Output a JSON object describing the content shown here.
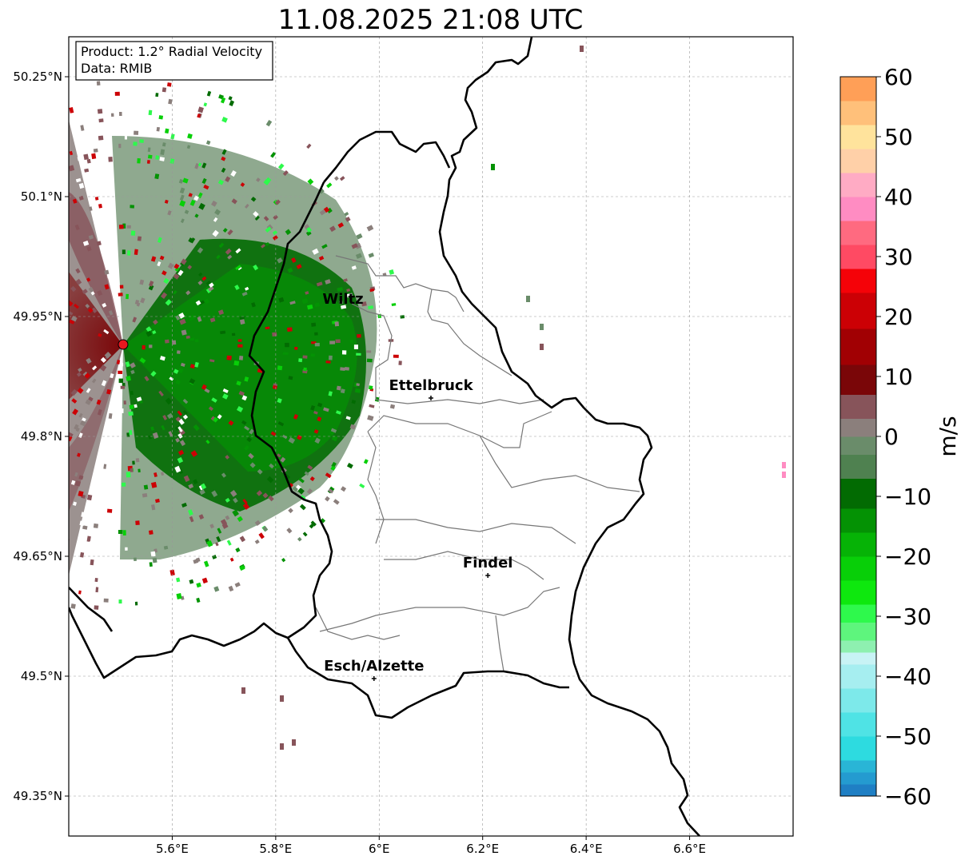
{
  "title": "11.08.2025 21:08 UTC",
  "info_box": {
    "product": "Product: 1.2° Radial Velocity",
    "data": "Data: RMIB"
  },
  "map": {
    "lon_range": [
      5.4,
      6.8
    ],
    "lat_range": [
      49.3,
      50.3
    ],
    "x_ticks": [
      {
        "value": 5.6,
        "label": "5.6°E"
      },
      {
        "value": 5.8,
        "label": "5.8°E"
      },
      {
        "value": 6.0,
        "label": "6°E"
      },
      {
        "value": 6.2,
        "label": "6.2°E"
      },
      {
        "value": 6.4,
        "label": "6.4°E"
      },
      {
        "value": 6.6,
        "label": "6.6°E"
      }
    ],
    "y_ticks": [
      {
        "value": 49.35,
        "label": "49.35°N"
      },
      {
        "value": 49.5,
        "label": "49.5°N"
      },
      {
        "value": 49.65,
        "label": "49.65°N"
      },
      {
        "value": 49.8,
        "label": "49.8°N"
      },
      {
        "value": 49.95,
        "label": "49.95°N"
      },
      {
        "value": 50.1,
        "label": "50.1°N"
      },
      {
        "value": 50.25,
        "label": "50.25°N"
      }
    ],
    "radar_site": {
      "lon": 5.505,
      "lat": 49.915,
      "color": "#e8171f"
    },
    "cities": [
      {
        "name": "Wiltz",
        "lon": 5.93,
        "lat": 49.966,
        "marker": false
      },
      {
        "name": "Ettelbruck",
        "lon": 6.1,
        "lat": 49.848,
        "marker": true
      },
      {
        "name": "Findel",
        "lon": 6.21,
        "lat": 49.626,
        "marker": true
      },
      {
        "name": "Esch/Alzette",
        "lon": 5.99,
        "lat": 49.497,
        "marker": true
      }
    ]
  },
  "colorbar": {
    "unit": "m/s",
    "min": -60,
    "max": 60,
    "ticks": [
      {
        "value": 60,
        "label": "60"
      },
      {
        "value": 50,
        "label": "50"
      },
      {
        "value": 40,
        "label": "40"
      },
      {
        "value": 30,
        "label": "30"
      },
      {
        "value": 20,
        "label": "20"
      },
      {
        "value": 10,
        "label": "10"
      },
      {
        "value": 0,
        "label": "0"
      },
      {
        "value": -10,
        "label": "−10"
      },
      {
        "value": -20,
        "label": "−20"
      },
      {
        "value": -30,
        "label": "−30"
      },
      {
        "value": -40,
        "label": "−40"
      },
      {
        "value": -50,
        "label": "−50"
      },
      {
        "value": -60,
        "label": "−60"
      }
    ],
    "bands": [
      {
        "from": -60,
        "to": -58,
        "color": "#1f7fc4"
      },
      {
        "from": -58,
        "to": -56,
        "color": "#249bd0"
      },
      {
        "from": -56,
        "to": -54,
        "color": "#29b5d6"
      },
      {
        "from": -54,
        "to": -50,
        "color": "#2ddbe0"
      },
      {
        "from": -50,
        "to": -46,
        "color": "#4fe3e5"
      },
      {
        "from": -46,
        "to": -42,
        "color": "#7de9ea"
      },
      {
        "from": -42,
        "to": -38,
        "color": "#a6eef0"
      },
      {
        "from": -38,
        "to": -36,
        "color": "#c8f3f5"
      },
      {
        "from": -36,
        "to": -34,
        "color": "#8ef0b0"
      },
      {
        "from": -34,
        "to": -31,
        "color": "#5ef57d"
      },
      {
        "from": -31,
        "to": -28,
        "color": "#2ef94c"
      },
      {
        "from": -28,
        "to": -24,
        "color": "#0ee80e"
      },
      {
        "from": -24,
        "to": -20,
        "color": "#08cf08"
      },
      {
        "from": -20,
        "to": -16,
        "color": "#06b306"
      },
      {
        "from": -16,
        "to": -12,
        "color": "#049204"
      },
      {
        "from": -12,
        "to": -7,
        "color": "#026b02"
      },
      {
        "from": -7,
        "to": -3,
        "color": "#4f8150"
      },
      {
        "from": -3,
        "to": 0,
        "color": "#6a8c6a"
      },
      {
        "from": 0,
        "to": 3,
        "color": "#8b7f7c"
      },
      {
        "from": 3,
        "to": 7,
        "color": "#87545a"
      },
      {
        "from": 7,
        "to": 12,
        "color": "#7a0608"
      },
      {
        "from": 12,
        "to": 18,
        "color": "#a10003"
      },
      {
        "from": 18,
        "to": 24,
        "color": "#cc0005"
      },
      {
        "from": 24,
        "to": 28,
        "color": "#f50208"
      },
      {
        "from": 28,
        "to": 32,
        "color": "#ff4a63"
      },
      {
        "from": 32,
        "to": 36,
        "color": "#ff6a80"
      },
      {
        "from": 36,
        "to": 40,
        "color": "#ff8cc2"
      },
      {
        "from": 40,
        "to": 44,
        "color": "#ffabc4"
      },
      {
        "from": 44,
        "to": 48,
        "color": "#ffd0a8"
      },
      {
        "from": 48,
        "to": 52,
        "color": "#ffe39c"
      },
      {
        "from": 52,
        "to": 56,
        "color": "#ffc07a"
      },
      {
        "from": 56,
        "to": 60,
        "color": "#ff9f57"
      }
    ]
  }
}
